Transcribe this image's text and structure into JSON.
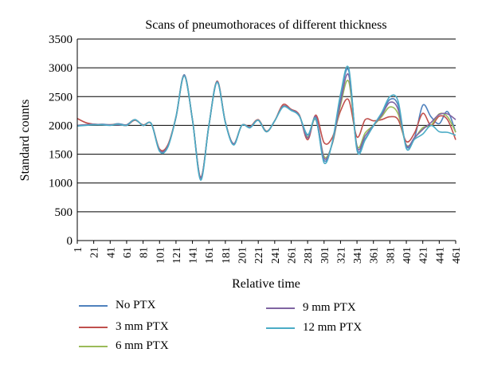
{
  "chart_data": {
    "type": "line",
    "title": "Scans of pneumothoraces of different thickness",
    "xlabel": "Relative time",
    "ylabel": "Standard counts",
    "ylim": [
      0,
      3500
    ],
    "xlim": [
      1,
      461
    ],
    "yticks": [
      "0",
      "500",
      "1000",
      "1500",
      "2000",
      "2500",
      "3000",
      "3500"
    ],
    "xticks": [
      "1",
      "21",
      "41",
      "61",
      "81",
      "101",
      "121",
      "141",
      "161",
      "181",
      "201",
      "221",
      "241",
      "261",
      "281",
      "301",
      "321",
      "341",
      "361",
      "381",
      "401",
      "421",
      "441",
      "461"
    ],
    "grid": "horizontal",
    "legend_position": "bottom",
    "x": [
      1,
      11,
      21,
      31,
      41,
      51,
      61,
      71,
      81,
      91,
      101,
      111,
      121,
      131,
      141,
      151,
      161,
      171,
      181,
      191,
      201,
      211,
      221,
      231,
      241,
      251,
      261,
      271,
      281,
      291,
      301,
      311,
      321,
      331,
      341,
      351,
      361,
      371,
      381,
      391,
      401,
      411,
      421,
      431,
      441,
      451,
      461
    ],
    "series": [
      {
        "name": "No PTX",
        "color": "#4f81bd",
        "values": [
          1990,
          2010,
          2010,
          2020,
          2010,
          2030,
          2010,
          2100,
          2000,
          2030,
          1560,
          1630,
          2150,
          2880,
          2100,
          1080,
          2000,
          2750,
          2050,
          1670,
          2000,
          1960,
          2090,
          1890,
          2080,
          2320,
          2270,
          2160,
          1840,
          2100,
          1390,
          1700,
          2500,
          2950,
          1600,
          1770,
          1990,
          2200,
          2450,
          2350,
          1640,
          1790,
          2350,
          2150,
          2030,
          2240,
          1880
        ]
      },
      {
        "name": "3 mm PTX",
        "color": "#c0504d",
        "values": [
          2120,
          2050,
          2020,
          2010,
          2010,
          2020,
          2000,
          2090,
          2010,
          2030,
          1590,
          1660,
          2150,
          2860,
          2100,
          1100,
          2000,
          2770,
          2060,
          1680,
          2000,
          1980,
          2100,
          1900,
          2080,
          2360,
          2280,
          2180,
          1750,
          2180,
          1700,
          1790,
          2250,
          2440,
          1800,
          2100,
          2080,
          2100,
          2150,
          2100,
          1720,
          1870,
          2210,
          2000,
          2160,
          2100,
          1750
        ]
      },
      {
        "name": "6 mm PTX",
        "color": "#9bbb59",
        "values": [
          2000,
          2010,
          2020,
          2010,
          2010,
          2010,
          2010,
          2100,
          2000,
          2030,
          1570,
          1640,
          2140,
          2870,
          2100,
          1090,
          2000,
          2760,
          2060,
          1680,
          2000,
          1970,
          2090,
          1890,
          2080,
          2330,
          2270,
          2170,
          1800,
          2120,
          1460,
          1680,
          2350,
          2760,
          1650,
          1870,
          2000,
          2150,
          2320,
          2200,
          1660,
          1780,
          1960,
          2000,
          2200,
          2150,
          1880
        ]
      },
      {
        "name": "9 mm PTX",
        "color": "#8064a2",
        "values": [
          2000,
          2010,
          2020,
          2010,
          2010,
          2010,
          2010,
          2100,
          2000,
          2030,
          1570,
          1640,
          2140,
          2870,
          2100,
          1090,
          2000,
          2760,
          2060,
          1680,
          2000,
          1970,
          2090,
          1890,
          2080,
          2330,
          2270,
          2170,
          1780,
          2150,
          1430,
          1690,
          2400,
          2870,
          1630,
          1820,
          2000,
          2180,
          2400,
          2280,
          1650,
          1790,
          1930,
          2050,
          2190,
          2200,
          2100
        ]
      },
      {
        "name": "12 mm PTX",
        "color": "#4bacc6",
        "values": [
          1990,
          2000,
          2010,
          2010,
          2000,
          2020,
          2000,
          2100,
          2000,
          2030,
          1550,
          1620,
          2150,
          2860,
          2100,
          1050,
          2000,
          2750,
          2050,
          1660,
          2000,
          1960,
          2090,
          1890,
          2080,
          2320,
          2260,
          2160,
          1830,
          2120,
          1350,
          1710,
          2540,
          2990,
          1570,
          1750,
          2000,
          2220,
          2500,
          2420,
          1600,
          1760,
          1850,
          2000,
          1890,
          1880,
          1830
        ]
      }
    ]
  }
}
